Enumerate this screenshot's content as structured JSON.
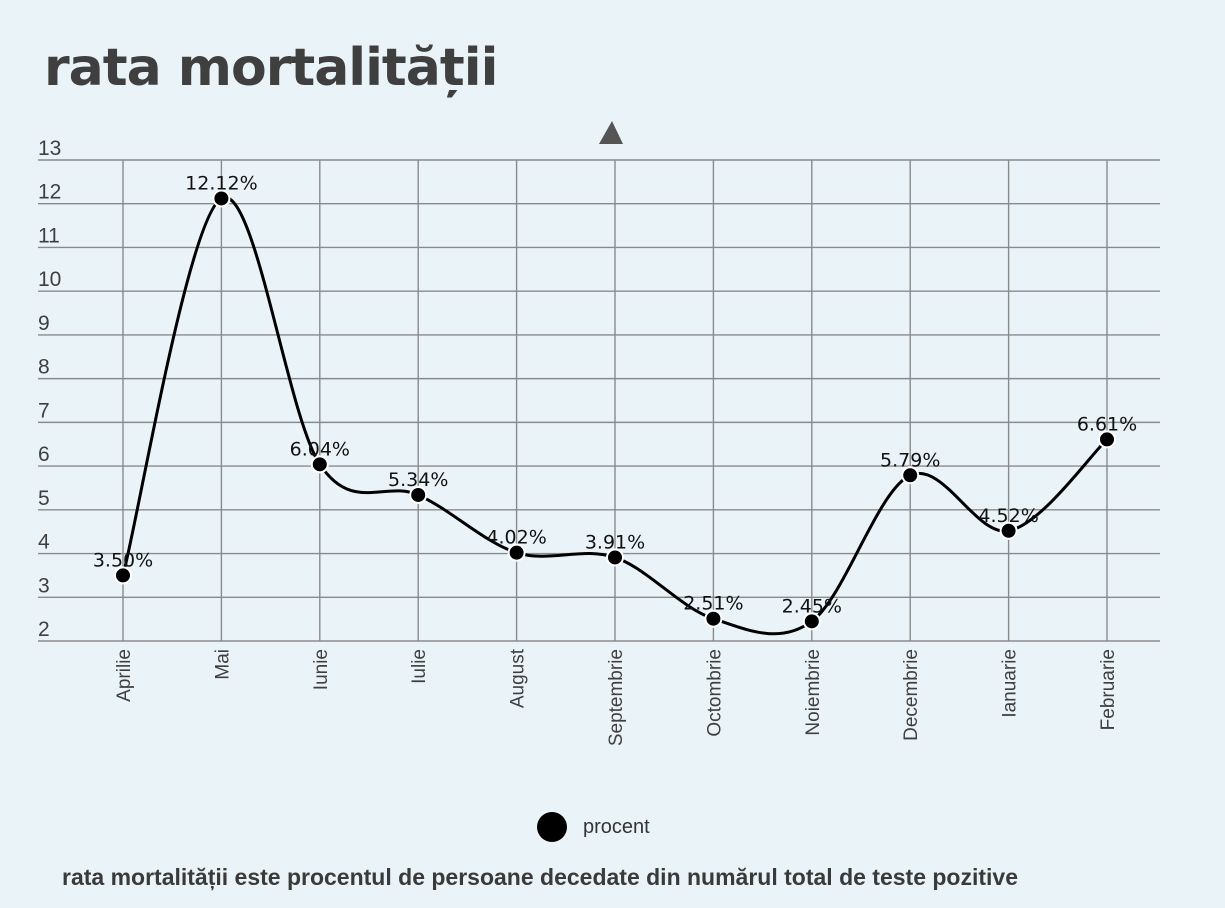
{
  "title": "rata mortalității",
  "footnote": "rata mortalității este procentul de persoane decedate din numărul total de teste pozitive",
  "legend": {
    "label": "procent",
    "marker": "filled-circle"
  },
  "colors": {
    "background": "#eaf4f8",
    "line": "#000000",
    "grid": "#8a8a8a",
    "text": "#3f3f3f",
    "marker_indicator": "#555555"
  },
  "chart_data": {
    "type": "line",
    "title": "rata mortalității",
    "xlabel": "",
    "ylabel": "",
    "ylim": [
      2,
      13
    ],
    "yticks": [
      2,
      3,
      4,
      5,
      6,
      7,
      8,
      9,
      10,
      11,
      12,
      13
    ],
    "grid": true,
    "smooth": true,
    "legend_position": "bottom-center",
    "categories": [
      "Aprilie",
      "Mai",
      "Iunie",
      "Iulie",
      "August",
      "Septembrie",
      "Octombrie",
      "Noiembrie",
      "Decembrie",
      "Ianuarie",
      "Februarie"
    ],
    "series": [
      {
        "name": "procent",
        "values": [
          3.5,
          12.12,
          6.04,
          5.34,
          4.02,
          3.91,
          2.51,
          2.45,
          5.79,
          4.52,
          6.61
        ],
        "labels": [
          "3.50%",
          "12.12%",
          "6.04%",
          "5.34%",
          "4.02%",
          "3.91%",
          "2.51%",
          "2.45%",
          "5.79%",
          "4.52%",
          "6.61%"
        ]
      }
    ]
  }
}
